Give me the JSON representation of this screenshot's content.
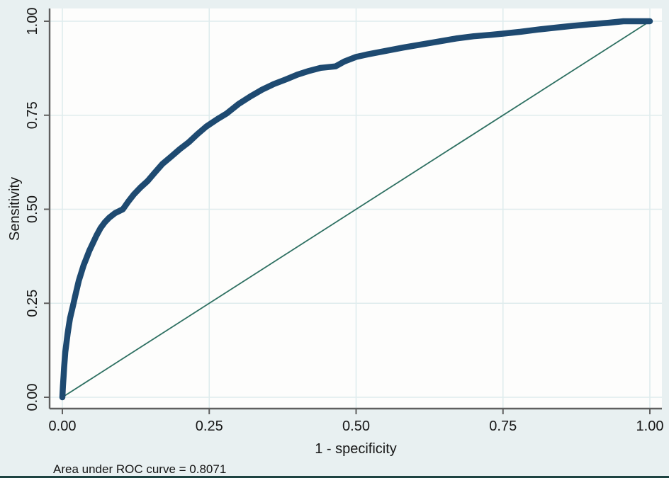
{
  "figure": {
    "caption": "Area under ROC curve = 0.8071",
    "xlabel": "1 - specificity",
    "ylabel": "Sensitivity"
  },
  "colors": {
    "outer_background": "#e8f0f1",
    "plot_background": "#fdfdfc",
    "gridline": "#dfeced",
    "axis_line": "#5f5f5f",
    "roc_curve": "#1e4a71",
    "reference_line": "#2e7062",
    "text": "#161616",
    "bottom_rule": "#1d4341"
  },
  "chart_data": {
    "type": "line",
    "title": "",
    "xlabel": "1 - specificity",
    "ylabel": "Sensitivity",
    "xlim": [
      0,
      1
    ],
    "ylim": [
      0,
      1
    ],
    "grid": true,
    "legend": "none",
    "annotations": [
      "Area under ROC curve = 0.8071"
    ],
    "auc": 0.8071,
    "xticks": {
      "values": [
        0,
        0.25,
        0.5,
        0.75,
        1.0
      ],
      "labels": [
        "0.00",
        "0.25",
        "0.50",
        "0.75",
        "1.00"
      ]
    },
    "yticks": {
      "values": [
        0,
        0.25,
        0.5,
        0.75,
        1.0
      ],
      "labels": [
        "0.00",
        "0.25",
        "0.50",
        "0.75",
        "1.00"
      ]
    },
    "series": [
      {
        "name": "ROC curve",
        "style": "thick-navy-line",
        "points": [
          [
            0,
            0
          ],
          [
            0.001,
            0.03
          ],
          [
            0.002,
            0.055
          ],
          [
            0.003,
            0.08
          ],
          [
            0.004,
            0.1
          ],
          [
            0.005,
            0.12
          ],
          [
            0.007,
            0.145
          ],
          [
            0.009,
            0.17
          ],
          [
            0.011,
            0.19
          ],
          [
            0.013,
            0.21
          ],
          [
            0.016,
            0.23
          ],
          [
            0.019,
            0.25
          ],
          [
            0.022,
            0.27
          ],
          [
            0.025,
            0.29
          ],
          [
            0.028,
            0.31
          ],
          [
            0.032,
            0.33
          ],
          [
            0.036,
            0.35
          ],
          [
            0.041,
            0.37
          ],
          [
            0.046,
            0.39
          ],
          [
            0.052,
            0.41
          ],
          [
            0.058,
            0.43
          ],
          [
            0.065,
            0.45
          ],
          [
            0.072,
            0.465
          ],
          [
            0.08,
            0.478
          ],
          [
            0.09,
            0.49
          ],
          [
            0.103,
            0.5
          ],
          [
            0.112,
            0.52
          ],
          [
            0.122,
            0.54
          ],
          [
            0.133,
            0.558
          ],
          [
            0.145,
            0.575
          ],
          [
            0.157,
            0.597
          ],
          [
            0.17,
            0.62
          ],
          [
            0.185,
            0.64
          ],
          [
            0.2,
            0.66
          ],
          [
            0.215,
            0.678
          ],
          [
            0.23,
            0.7
          ],
          [
            0.245,
            0.72
          ],
          [
            0.264,
            0.74
          ],
          [
            0.28,
            0.755
          ],
          [
            0.3,
            0.78
          ],
          [
            0.32,
            0.8
          ],
          [
            0.34,
            0.818
          ],
          [
            0.36,
            0.833
          ],
          [
            0.38,
            0.845
          ],
          [
            0.4,
            0.858
          ],
          [
            0.42,
            0.868
          ],
          [
            0.44,
            0.876
          ],
          [
            0.465,
            0.88
          ],
          [
            0.48,
            0.893
          ],
          [
            0.5,
            0.905
          ],
          [
            0.52,
            0.912
          ],
          [
            0.55,
            0.921
          ],
          [
            0.58,
            0.93
          ],
          [
            0.61,
            0.938
          ],
          [
            0.64,
            0.946
          ],
          [
            0.67,
            0.954
          ],
          [
            0.7,
            0.96
          ],
          [
            0.73,
            0.964
          ],
          [
            0.75,
            0.967
          ],
          [
            0.78,
            0.972
          ],
          [
            0.81,
            0.978
          ],
          [
            0.84,
            0.983
          ],
          [
            0.87,
            0.988
          ],
          [
            0.9,
            0.992
          ],
          [
            0.93,
            0.996
          ],
          [
            0.955,
            1.0
          ],
          [
            1.0,
            1.0
          ]
        ]
      },
      {
        "name": "Reference diagonal",
        "style": "thin-teal-line",
        "points": [
          [
            0,
            0
          ],
          [
            1,
            1
          ]
        ]
      }
    ]
  }
}
